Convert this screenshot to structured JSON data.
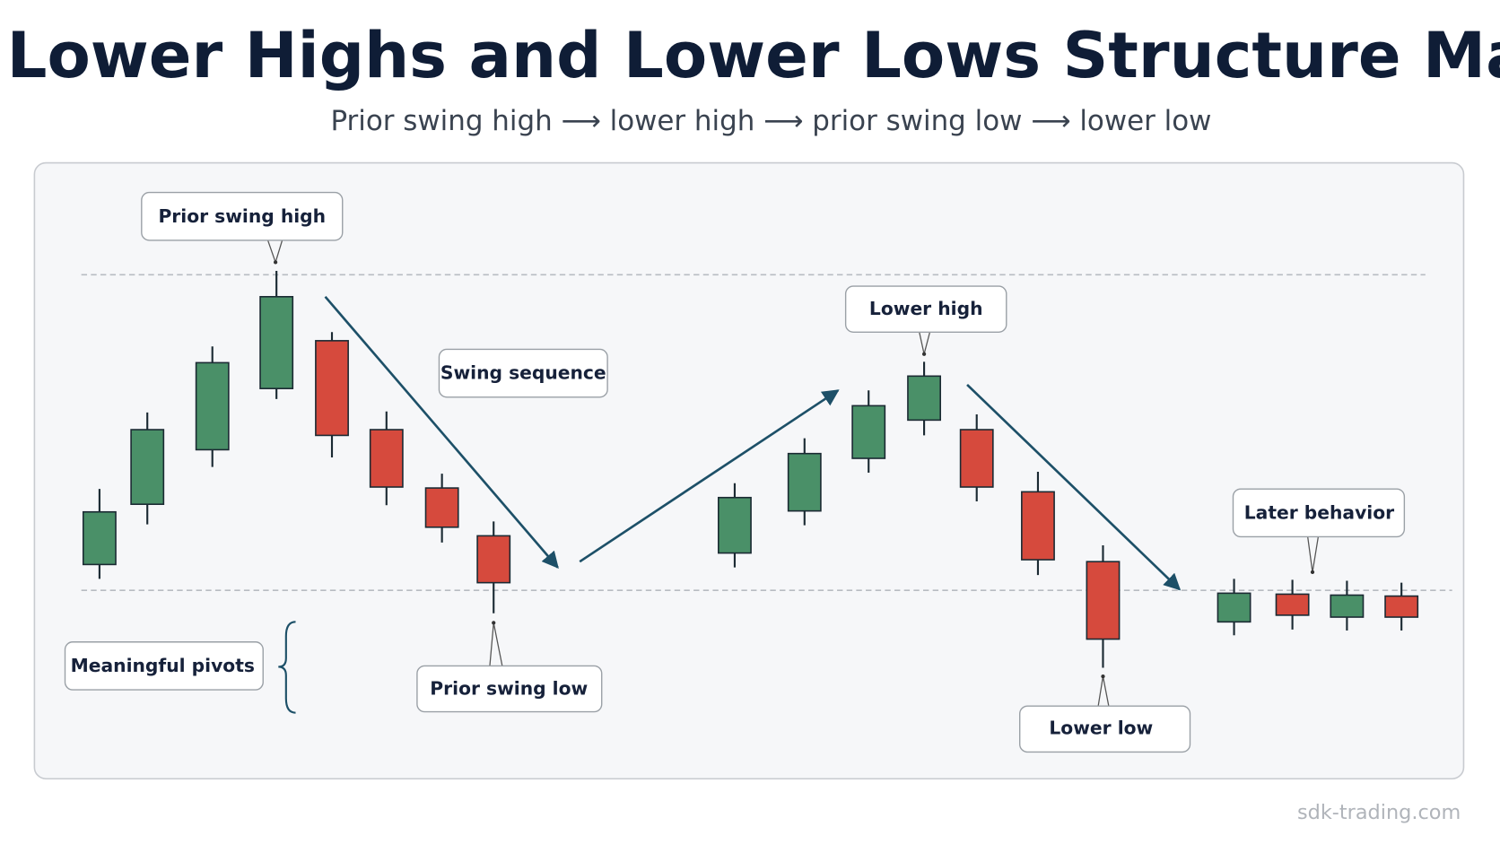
{
  "header": {
    "title": "Lower Highs and Lower Lows Structure Map",
    "subtitle": "Prior swing high ⟶ lower high ⟶ prior swing low ⟶ lower low"
  },
  "labels": {
    "prior_swing_high": "Prior swing high",
    "swing_sequence": "Swing sequence",
    "lower_high": "Lower high",
    "later_behavior": "Later behavior",
    "meaningful_pivots": "Meaningful pivots",
    "prior_swing_low": "Prior swing low",
    "lower_low": "Lower low"
  },
  "footer": {
    "watermark": "sdk-trading.com"
  }
}
